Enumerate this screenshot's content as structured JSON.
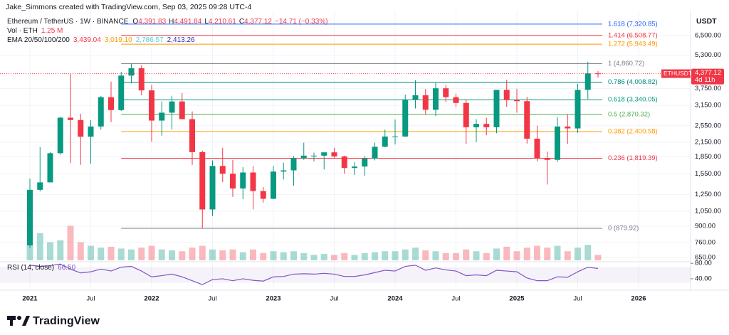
{
  "header": {
    "author": "Jake_Simmons created with TradingView.com, Sep 03, 2025 09:28 UTC-4",
    "currency": "USDT"
  },
  "legend": {
    "symbol": "Ethereum / TetherUS · 1W · BINANCE",
    "ohlc": [
      {
        "label": "O",
        "value": "4,391.83"
      },
      {
        "label": "H",
        "value": "4,491.84"
      },
      {
        "label": "L",
        "value": "4,210.61"
      },
      {
        "label": "C",
        "value": "4,377.12"
      }
    ],
    "change": "−14.71 (−0.33%)",
    "volume_label": "Vol · ETH",
    "volume_value": "1.25 M",
    "ema_label": "EMA 20/50/100/200",
    "ema_values": [
      {
        "value": "3,439.04",
        "color": "#f23645"
      },
      {
        "value": "3,019.10",
        "color": "#ff9800"
      },
      {
        "value": "2,786.57",
        "color": "#4dd0e1"
      },
      {
        "value": "2,413.26",
        "color": "#2a2ebf"
      }
    ],
    "rsi_label": "RSI (14, close)",
    "rsi_value": "66.50"
  },
  "price_tag": {
    "symbol": "ETHUSDT",
    "price": "4,377.12",
    "countdown": "4d 11h"
  },
  "footer": {
    "brand": "TradingView"
  },
  "chart_data": {
    "type": "candlestick",
    "log_scale": true,
    "grid": true,
    "up_color": "#089981",
    "down_color": "#f23645",
    "categories": [
      "2021",
      null,
      null,
      null,
      null,
      null,
      "Jul",
      null,
      null,
      null,
      null,
      null,
      "2022",
      null,
      null,
      null,
      null,
      null,
      "Jul",
      null,
      null,
      null,
      null,
      null,
      "2023",
      null,
      null,
      null,
      null,
      null,
      "Jul",
      null,
      null,
      null,
      null,
      null,
      "2024",
      null,
      null,
      null,
      null,
      null,
      "Jul",
      null,
      null,
      null,
      null,
      null,
      "2025",
      null,
      null,
      null,
      null,
      null,
      "Jul",
      null,
      null,
      null,
      null,
      null,
      "2026"
    ],
    "open": [
      737,
      1312,
      1417,
      1918,
      2772,
      2706,
      2275,
      2530,
      3430,
      3000,
      4290,
      4630,
      3680,
      2690,
      2920,
      3280,
      2730,
      1940,
      1070,
      1680,
      1550,
      1330,
      1570,
      1295,
      1195,
      1585,
      1605,
      1820,
      1870,
      1870,
      1935,
      1855,
      1645,
      1670,
      1815,
      2050,
      2280,
      2280,
      3340,
      3500,
      3010,
      3760,
      3430,
      3230,
      2510,
      2600,
      2510,
      3700,
      3330,
      3290,
      2230,
      1820,
      1790,
      2530,
      2480,
      3700,
      4390,
      null,
      null,
      null,
      null
    ],
    "high": [
      1475,
      2040,
      1945,
      2800,
      4370,
      2890,
      2700,
      3470,
      4030,
      4460,
      4870,
      4780,
      3900,
      3280,
      3480,
      3580,
      2960,
      1970,
      1780,
      2030,
      1790,
      1660,
      1680,
      1350,
      1680,
      1740,
      1860,
      2140,
      1930,
      1930,
      2030,
      1870,
      1750,
      1860,
      2140,
      2450,
      2720,
      3520,
      4090,
      3730,
      3980,
      3890,
      3560,
      3340,
      2730,
      2770,
      3680,
      4110,
      3740,
      3440,
      2550,
      1950,
      2790,
      2880,
      3940,
      4950,
      4490,
      null,
      null,
      null,
      null
    ],
    "low": [
      715,
      1290,
      1430,
      1890,
      1730,
      1700,
      1720,
      2450,
      2650,
      2970,
      3960,
      3500,
      2160,
      2300,
      2450,
      2780,
      1700,
      880,
      1000,
      1420,
      1220,
      1190,
      1070,
      1150,
      1190,
      1460,
      1370,
      1790,
      1760,
      1620,
      1830,
      1550,
      1530,
      1520,
      1780,
      2040,
      2100,
      2270,
      3050,
      2860,
      2820,
      3260,
      3090,
      2110,
      2150,
      2310,
      2360,
      3100,
      2920,
      2120,
      1760,
      1385,
      1750,
      2110,
      2370,
      3360,
      4210,
      null,
      null,
      null,
      null
    ],
    "close": [
      1312,
      1417,
      1918,
      2772,
      2706,
      2275,
      2530,
      3430,
      3000,
      4290,
      4630,
      3680,
      2690,
      2920,
      3280,
      2730,
      1940,
      1070,
      1680,
      1550,
      1330,
      1570,
      1295,
      1195,
      1585,
      1605,
      1820,
      1870,
      1870,
      1935,
      1855,
      1645,
      1670,
      1815,
      2050,
      2280,
      2280,
      3340,
      3500,
      3010,
      3760,
      3430,
      3230,
      2510,
      2600,
      2510,
      3700,
      3330,
      3290,
      2230,
      1820,
      1790,
      2530,
      2480,
      3700,
      4390,
      4377.12,
      null,
      null,
      null,
      null
    ],
    "volume": [
      18,
      30,
      20,
      22,
      38,
      20,
      16,
      14,
      15,
      13,
      12,
      14,
      16,
      12,
      11,
      10,
      14,
      16,
      12,
      11,
      12,
      9,
      12,
      8,
      10,
      9,
      10,
      8,
      6,
      7,
      6,
      8,
      6,
      8,
      9,
      10,
      10,
      12,
      14,
      11,
      10,
      8,
      8,
      12,
      10,
      8,
      13,
      15,
      10,
      14,
      16,
      14,
      16,
      10,
      14,
      17,
      6,
      null,
      null,
      null,
      null
    ],
    "vol_lim": [
      0,
      40
    ],
    "rsi": [
      75,
      72,
      74,
      78,
      65,
      55,
      58,
      65,
      60,
      70,
      72,
      60,
      45,
      48,
      52,
      45,
      35,
      25,
      38,
      40,
      35,
      40,
      36,
      34,
      45,
      46,
      52,
      53,
      52,
      54,
      52,
      46,
      46,
      50,
      56,
      62,
      60,
      72,
      75,
      62,
      68,
      63,
      60,
      48,
      50,
      48,
      62,
      60,
      58,
      42,
      35,
      35,
      45,
      44,
      58,
      70,
      66.5,
      null,
      null,
      null,
      null
    ],
    "rsi_lim": [
      16,
      84
    ],
    "rsi_ticks": [
      {
        "value": 80,
        "label": "80.00"
      },
      {
        "value": 40,
        "label": "40.00"
      }
    ],
    "ylim": [
      622,
      8730
    ],
    "yticks": [
      {
        "value": 650,
        "label": "650.00"
      },
      {
        "value": 760,
        "label": "760.00"
      },
      {
        "value": 900,
        "label": "900.00"
      },
      {
        "value": 1050,
        "label": "1,050.00"
      },
      {
        "value": 1250,
        "label": "1,250.00"
      },
      {
        "value": 1550,
        "label": "1,550.00"
      },
      {
        "value": 1850,
        "label": "1,850.00"
      },
      {
        "value": 2150,
        "label": "2,150.00"
      },
      {
        "value": 2550,
        "label": "2,550.00"
      },
      {
        "value": 3150,
        "label": "3,150.00"
      },
      {
        "value": 3750,
        "label": "3,750.00"
      },
      {
        "value": 5300,
        "label": "5,300.00"
      },
      {
        "value": 6500,
        "label": "6,500.00"
      }
    ],
    "fib_levels": [
      {
        "label": "0 (879.92)",
        "value": 879.92,
        "color": "#787b86"
      },
      {
        "label": "0.236 (1,819.39)",
        "value": 1819.39,
        "color": "#f23645"
      },
      {
        "label": "0.382 (2,400.58)",
        "value": 2400.58,
        "color": "#ff9800"
      },
      {
        "label": "0.5 (2,870.32)",
        "value": 2870.32,
        "color": "#4caf50"
      },
      {
        "label": "0.618 (3,340.05)",
        "value": 3340.05,
        "color": "#089981"
      },
      {
        "label": "0.786 (4,008.82)",
        "value": 4008.82,
        "color": "#00897b"
      },
      {
        "label": "1 (4,860.72)",
        "value": 4860.72,
        "color": "#787b86"
      },
      {
        "label": "1.272 (5,943.49)",
        "value": 5943.49,
        "color": "#ff9800"
      },
      {
        "label": "1.414 (6,508.77)",
        "value": 6508.77,
        "color": "#f23645"
      },
      {
        "label": "1.618 (7,320.85)",
        "value": 7320.85,
        "color": "#2962ff"
      }
    ]
  }
}
